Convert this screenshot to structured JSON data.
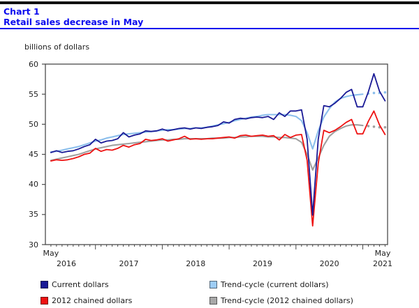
{
  "header": {
    "chart_label": "Chart 1",
    "title": "Retail sales decrease in May",
    "unit_label": "billions of dollars"
  },
  "colors": {
    "title_blue": "#0a0aee",
    "rule_blue": "#0a0aee",
    "top_bar": "#111111",
    "axis": "#4a4a4a",
    "current": "#1a1a96",
    "trend_current": "#8cbfec",
    "chained": "#ee1111",
    "trend_chained": "#a0a0a0"
  },
  "legend": [
    {
      "label": "Current dollars",
      "color": "#1a1a96"
    },
    {
      "label": "Trend-cycle (current dollars)",
      "color": "#9ecdf5"
    },
    {
      "label": "2012 chained dollars",
      "color": "#ee1111"
    },
    {
      "label": "Trend-cycle (2012 chained dollars)",
      "color": "#a8a8a8"
    }
  ],
  "chart_data": {
    "type": "line",
    "title": "Retail sales decrease in May",
    "ylabel": "billions of dollars",
    "ylim": [
      30,
      60
    ],
    "yticks": [
      30,
      35,
      40,
      45,
      50,
      55,
      60
    ],
    "x_start": "2016-05",
    "x_end": "2021-05",
    "months_total": 61,
    "grid": false,
    "legend_position": "bottom",
    "x_axis": {
      "start_month_label": "May",
      "start_year_label": "2016",
      "mid_year_labels": [
        "2017",
        "2018",
        "2019",
        "2020"
      ],
      "end_month_label": "May",
      "end_year_label": "2021",
      "january_tick_month_indices": [
        8,
        20,
        32,
        44,
        56
      ]
    },
    "series": [
      {
        "name": "Trend-cycle (2012 chained dollars)",
        "color": "#a0a0a0",
        "width": 2.1,
        "dotted_tail_points": 4,
        "values": [
          44.0,
          44.2,
          44.4,
          44.6,
          44.8,
          45.0,
          45.3,
          45.6,
          45.9,
          46.1,
          46.3,
          46.5,
          46.6,
          46.7,
          46.8,
          46.9,
          47.0,
          47.1,
          47.2,
          47.3,
          47.4,
          47.4,
          47.5,
          47.5,
          47.6,
          47.6,
          47.6,
          47.6,
          47.6,
          47.7,
          47.7,
          47.7,
          47.8,
          47.8,
          47.9,
          47.9,
          48.0,
          48.0,
          48.0,
          47.9,
          47.9,
          47.8,
          47.8,
          47.7,
          47.6,
          47.0,
          45.0,
          42.4,
          44.4,
          46.5,
          48.0,
          48.8,
          49.3,
          49.7,
          49.9,
          49.9,
          49.8,
          49.7,
          49.6,
          49.5,
          49.5
        ]
      },
      {
        "name": "Trend-cycle (current dollars)",
        "color": "#8cbfec",
        "width": 2.1,
        "dotted_tail_points": 4,
        "values": [
          45.4,
          45.5,
          45.7,
          45.9,
          46.1,
          46.3,
          46.6,
          46.9,
          47.2,
          47.4,
          47.7,
          47.9,
          48.1,
          48.3,
          48.4,
          48.5,
          48.6,
          48.7,
          48.8,
          48.9,
          49.0,
          49.1,
          49.1,
          49.2,
          49.3,
          49.3,
          49.4,
          49.4,
          49.5,
          49.7,
          49.9,
          50.1,
          50.3,
          50.6,
          50.8,
          51.0,
          51.2,
          51.3,
          51.5,
          51.6,
          51.6,
          51.6,
          51.6,
          51.5,
          51.3,
          50.6,
          48.6,
          45.9,
          48.9,
          51.2,
          52.6,
          53.7,
          54.3,
          54.6,
          54.8,
          54.9,
          55.0,
          55.1,
          55.2,
          55.2,
          55.3
        ]
      },
      {
        "name": "2012 chained dollars",
        "color": "#ee1111",
        "width": 1.8,
        "dotted_tail_points": 0,
        "values": [
          43.9,
          44.1,
          44.0,
          44.1,
          44.3,
          44.6,
          45.0,
          45.2,
          46.0,
          45.5,
          45.8,
          45.7,
          46.0,
          46.5,
          46.2,
          46.6,
          46.8,
          47.5,
          47.3,
          47.4,
          47.6,
          47.2,
          47.4,
          47.6,
          48.0,
          47.5,
          47.6,
          47.5,
          47.6,
          47.6,
          47.7,
          47.8,
          47.9,
          47.7,
          48.1,
          48.2,
          48.0,
          48.1,
          48.2,
          48.0,
          48.1,
          47.4,
          48.3,
          47.8,
          48.2,
          48.3,
          44.0,
          33.1,
          43.5,
          49.0,
          48.6,
          49.0,
          49.6,
          50.3,
          50.8,
          48.4,
          48.4,
          50.5,
          52.2,
          49.9,
          48.3
        ]
      },
      {
        "name": "Current dollars",
        "color": "#1a1a96",
        "width": 1.8,
        "dotted_tail_points": 0,
        "values": [
          45.3,
          45.6,
          45.3,
          45.5,
          45.6,
          45.9,
          46.3,
          46.6,
          47.5,
          46.9,
          47.2,
          47.3,
          47.6,
          48.6,
          47.9,
          48.2,
          48.4,
          48.9,
          48.8,
          48.9,
          49.2,
          48.9,
          49.1,
          49.3,
          49.4,
          49.2,
          49.4,
          49.3,
          49.5,
          49.6,
          49.8,
          50.4,
          50.2,
          50.8,
          51.0,
          50.9,
          51.1,
          51.2,
          51.1,
          51.3,
          50.8,
          51.9,
          51.3,
          52.2,
          52.2,
          52.4,
          47.5,
          34.9,
          47.5,
          53.1,
          52.9,
          53.5,
          54.3,
          55.3,
          55.8,
          52.9,
          52.9,
          55.4,
          58.4,
          55.5,
          53.9
        ]
      }
    ]
  }
}
